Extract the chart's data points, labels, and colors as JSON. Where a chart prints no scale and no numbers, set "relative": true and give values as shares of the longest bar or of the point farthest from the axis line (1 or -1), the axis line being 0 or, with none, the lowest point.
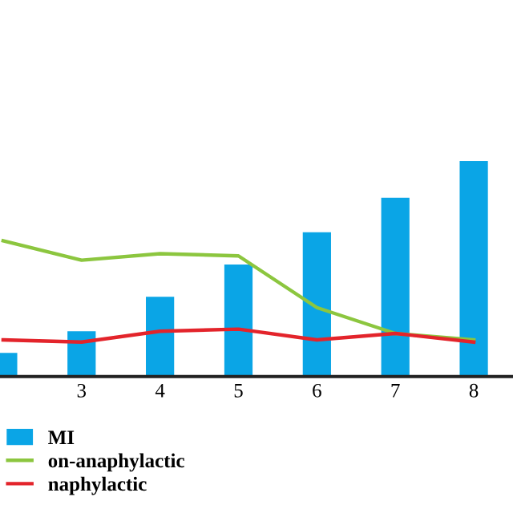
{
  "chart_data": {
    "type": "bar",
    "relative": true,
    "categories": [
      null,
      "3",
      "4",
      "5",
      "6",
      "7",
      "8"
    ],
    "series": [
      {
        "name": "MI",
        "color": "#0aa5e6",
        "values": [
          0.11,
          0.21,
          0.37,
          0.52,
          0.67,
          0.83,
          1.0
        ]
      },
      {
        "name": "on-anaphylactic",
        "type": "line",
        "color": "#8cc63f",
        "values": [
          0.63,
          0.54,
          0.57,
          0.56,
          0.32,
          0.2,
          0.17
        ]
      },
      {
        "name": "naphylactic",
        "type": "line",
        "color": "#e3242b",
        "values": [
          0.17,
          0.16,
          0.21,
          0.22,
          0.17,
          0.2,
          0.16
        ]
      }
    ],
    "legend": "bottom left",
    "grid": false
  }
}
